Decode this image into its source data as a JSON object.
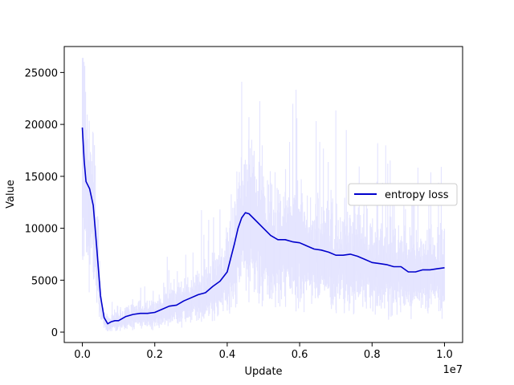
{
  "chart_data": {
    "type": "line",
    "xlabel": "Update",
    "ylabel": "Value",
    "x_multiplier": "1e7",
    "xlim": [
      -0.05,
      1.05
    ],
    "ylim": [
      -1000,
      27500
    ],
    "x_ticks": [
      0.0,
      0.2,
      0.4,
      0.6,
      0.8,
      1.0
    ],
    "x_tick_labels": [
      "0.0",
      "0.2",
      "0.4",
      "0.6",
      "0.8",
      "1.0"
    ],
    "y_ticks": [
      0,
      5000,
      10000,
      15000,
      20000,
      25000
    ],
    "y_tick_labels": [
      "0",
      "5000",
      "10000",
      "15000",
      "20000",
      "25000"
    ],
    "grid": false,
    "legend": {
      "position": "right",
      "entries": [
        "entropy loss"
      ]
    },
    "colors": {
      "smoothed": "#0000cc",
      "raw": "#e5e5ff",
      "axes": "#000000"
    },
    "series": [
      {
        "name": "entropy loss",
        "x": [
          0.0,
          0.005,
          0.01,
          0.02,
          0.03,
          0.04,
          0.05,
          0.06,
          0.07,
          0.08,
          0.09,
          0.1,
          0.12,
          0.14,
          0.16,
          0.18,
          0.2,
          0.22,
          0.24,
          0.26,
          0.28,
          0.3,
          0.32,
          0.34,
          0.36,
          0.38,
          0.4,
          0.42,
          0.43,
          0.44,
          0.45,
          0.46,
          0.48,
          0.5,
          0.52,
          0.54,
          0.56,
          0.58,
          0.6,
          0.62,
          0.64,
          0.66,
          0.68,
          0.7,
          0.72,
          0.74,
          0.76,
          0.78,
          0.8,
          0.82,
          0.84,
          0.86,
          0.88,
          0.9,
          0.92,
          0.94,
          0.96,
          0.98,
          1.0
        ],
        "y": [
          19700,
          16500,
          14500,
          13800,
          12200,
          8000,
          3500,
          1400,
          800,
          1000,
          1100,
          1100,
          1500,
          1700,
          1800,
          1800,
          1900,
          2200,
          2500,
          2600,
          3000,
          3300,
          3600,
          3800,
          4400,
          4900,
          5800,
          8500,
          10000,
          11000,
          11500,
          11400,
          10700,
          10000,
          9300,
          8900,
          8900,
          8700,
          8600,
          8300,
          8000,
          7900,
          7700,
          7400,
          7400,
          7500,
          7300,
          7000,
          6700,
          6600,
          6500,
          6300,
          6300,
          5800,
          5800,
          6000,
          6000,
          6100,
          6200
        ]
      }
    ]
  }
}
